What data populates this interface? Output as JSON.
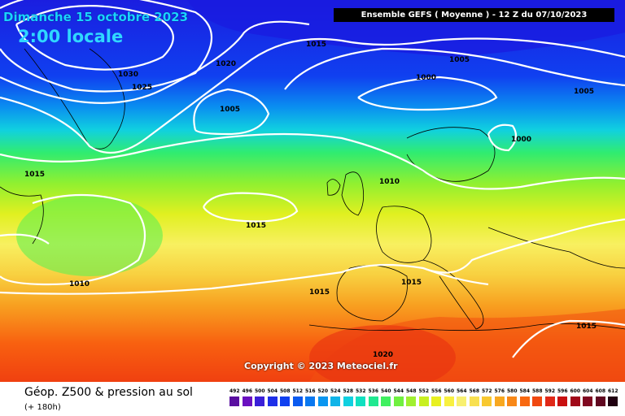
{
  "header": {
    "date_line": "Dimanche 15 octobre 2023",
    "time_line": "2:00 locale",
    "run_info": "Ensemble GEFS  ( Moyenne )  -  12 Z du 07/10/2023"
  },
  "copyright": "Copyright © 2023 Meteociel.fr",
  "footer": {
    "title": "Géop. Z500 & pression au sol",
    "subtitle": "(+ 180h)"
  },
  "isobar_labels": [
    "1030",
    "1025",
    "1020",
    "1015",
    "1005",
    "1000",
    "1005",
    "1005",
    "1000",
    "1015",
    "1015",
    "1010",
    "1010",
    "1015",
    "1015",
    "1015",
    "1020"
  ],
  "color_scale": {
    "values": [
      "492",
      "496",
      "500",
      "504",
      "508",
      "512",
      "516",
      "520",
      "524",
      "528",
      "532",
      "536",
      "540",
      "544",
      "548",
      "552",
      "556",
      "560",
      "564",
      "568",
      "572",
      "576",
      "580",
      "584",
      "588",
      "592",
      "596",
      "600",
      "604",
      "608",
      "612"
    ],
    "colors": [
      "#5a0fa0",
      "#6a10c0",
      "#3a1fd8",
      "#1e2fe8",
      "#1040f0",
      "#0a5af0",
      "#0a78f0",
      "#0a96f0",
      "#10b4e8",
      "#10d0e0",
      "#10e0c0",
      "#20e890",
      "#40f060",
      "#70f040",
      "#a0f030",
      "#c8f020",
      "#e8f020",
      "#f8f040",
      "#f8f070",
      "#f8e050",
      "#f8c830",
      "#f8a820",
      "#f88818",
      "#f86810",
      "#f04810",
      "#e02818",
      "#c81010",
      "#a00818",
      "#800820",
      "#600820",
      "#200010"
    ]
  },
  "colors": {
    "isobar": "#ffffff",
    "coast": "#000000",
    "header_text": "#19d4ff"
  }
}
